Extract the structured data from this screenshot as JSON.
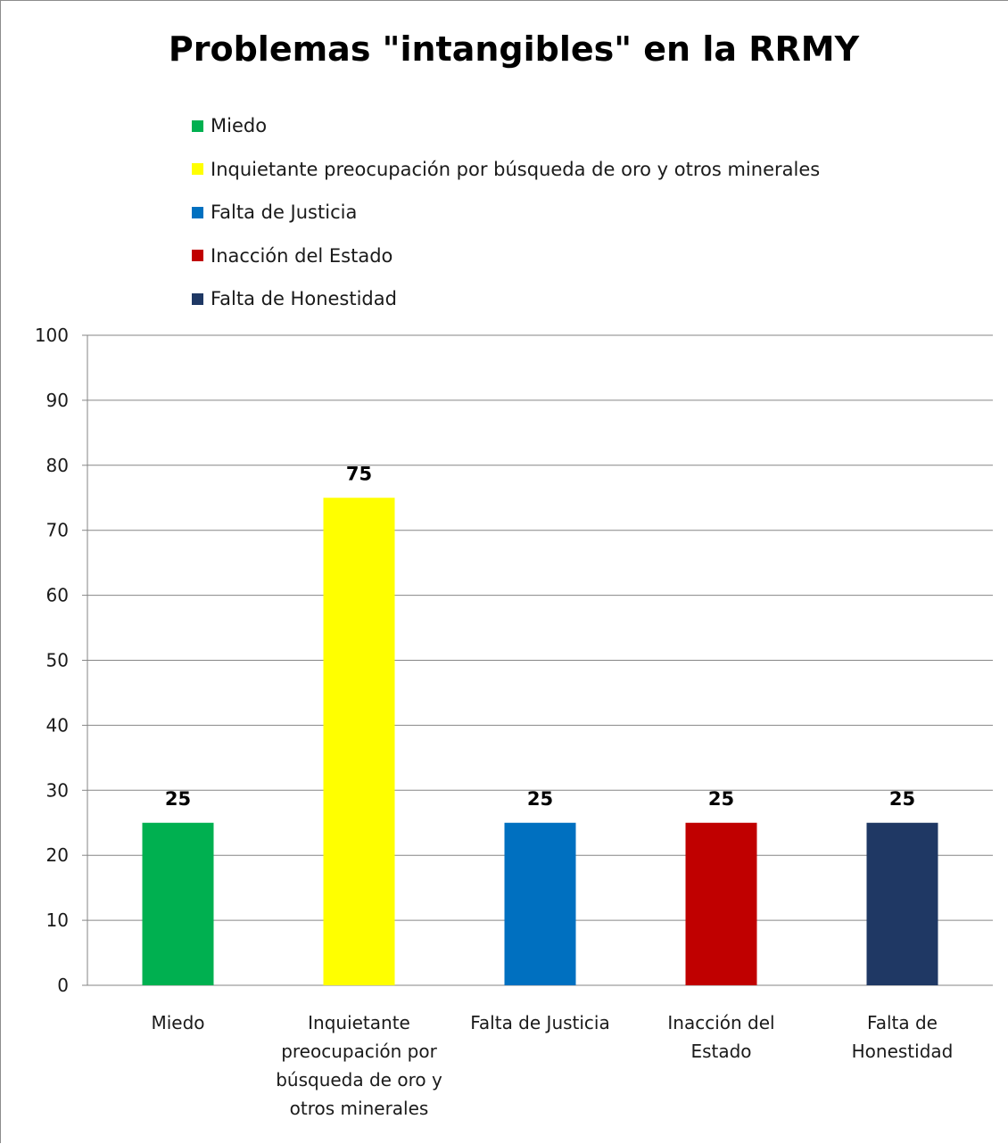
{
  "chart_data": {
    "type": "bar",
    "title": "Problemas \"intangibles\" en la RRMY",
    "categories": [
      "Miedo",
      "Inquietante preocupación por búsqueda de oro y otros minerales",
      "Falta de Justicia",
      "Inacción del Estado",
      "Falta de Honestidad"
    ],
    "category_labels_lines": [
      [
        "Miedo"
      ],
      [
        "Inquietante",
        "preocupación por",
        "búsqueda de oro y",
        "otros minerales"
      ],
      [
        "Falta de Justicia"
      ],
      [
        "Inacción del",
        "Estado"
      ],
      [
        "Falta de",
        "Honestidad"
      ]
    ],
    "values": [
      25,
      75,
      25,
      25,
      25
    ],
    "colors": [
      "#00b050",
      "#ffff00",
      "#0070c0",
      "#c00000",
      "#1f3864"
    ],
    "ylim": [
      0,
      100
    ],
    "yticks": [
      0,
      10,
      20,
      30,
      40,
      50,
      60,
      70,
      80,
      90,
      100
    ],
    "grid": true,
    "legend_position": "top-left",
    "data_labels": true,
    "xlabel": "",
    "ylabel": ""
  }
}
